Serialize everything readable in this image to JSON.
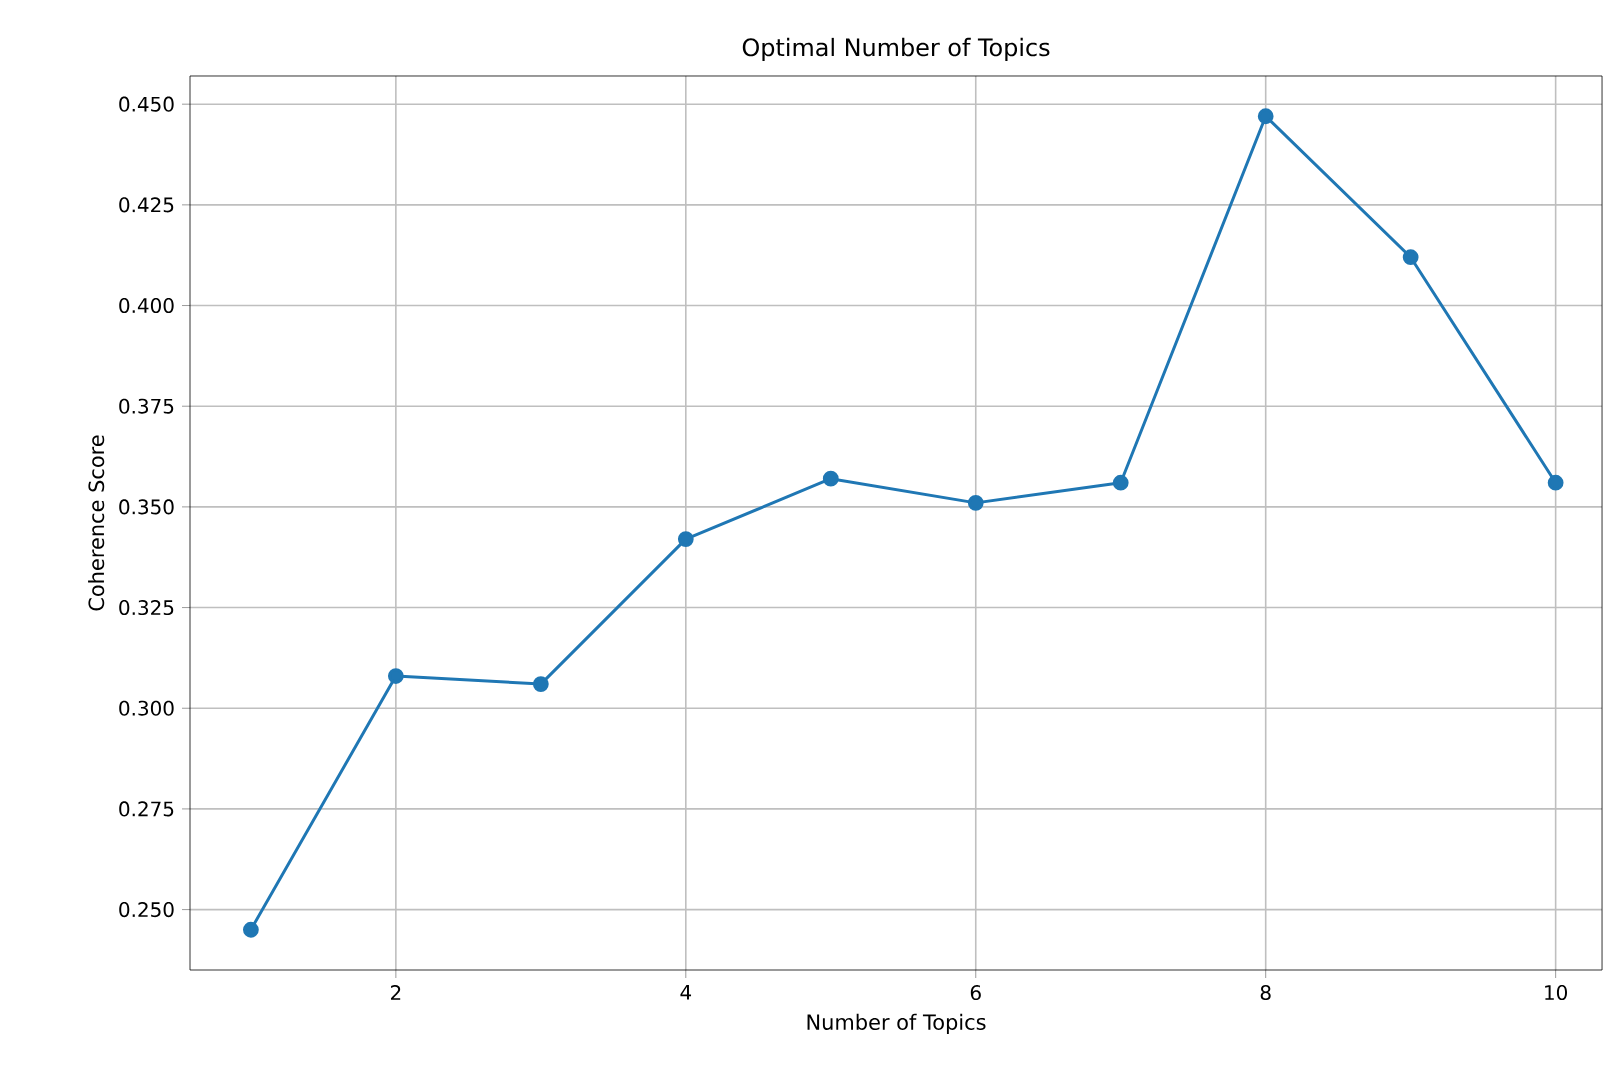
{
  "chart_data": {
    "type": "line",
    "title": "Optimal Number of Topics",
    "xlabel": "Number of Topics",
    "ylabel": "Coherence Score",
    "x": [
      1,
      2,
      3,
      4,
      5,
      6,
      7,
      8,
      9,
      10
    ],
    "series": [
      {
        "color": "#1f77b4",
        "values": [
          0.245,
          0.308,
          0.306,
          0.342,
          0.357,
          0.351,
          0.356,
          0.447,
          0.412,
          0.356
        ]
      }
    ],
    "xlim": [
      0.58,
      10.32
    ],
    "ylim": [
      0.235,
      0.457
    ],
    "xticks": [
      2,
      4,
      6,
      8,
      10
    ],
    "yticks": [
      {
        "value": 0.25,
        "label": "0.250"
      },
      0.275,
      {
        "value": 0.3,
        "label": "0.300"
      },
      0.325,
      {
        "value": 0.35,
        "label": "0.350"
      },
      0.375,
      {
        "value": 0.4,
        "label": "0.400"
      },
      0.425,
      {
        "value": 0.45,
        "label": "0.450"
      }
    ],
    "grid": true,
    "marker": "circle",
    "line_style": "solid"
  }
}
